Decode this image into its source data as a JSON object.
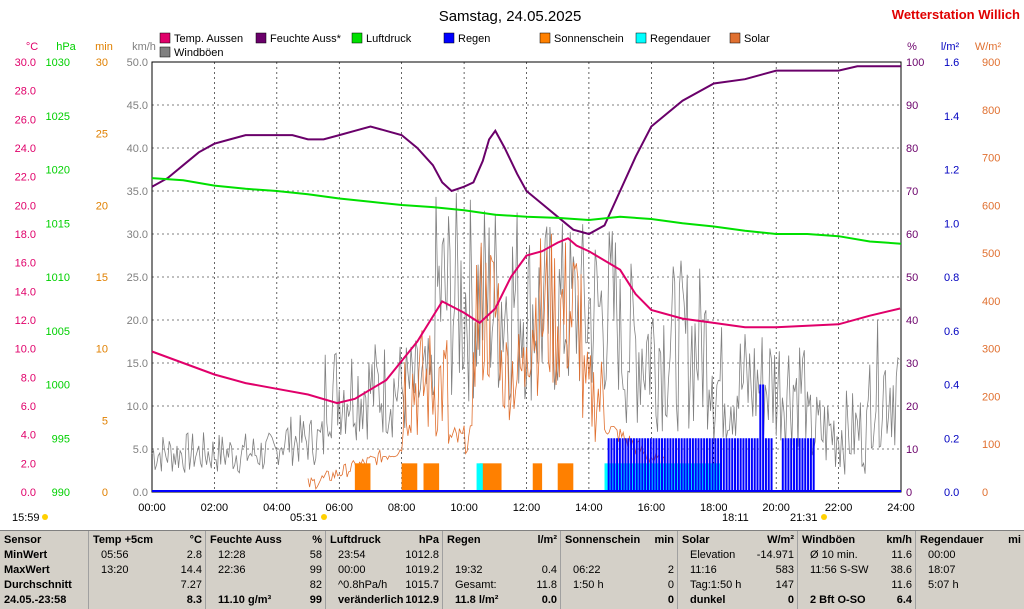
{
  "title": "Samstag, 24.05.2025",
  "station": "Wetterstation Willich",
  "colors": {
    "temp": "#e0006a",
    "hum": "#6a006a",
    "press": "#00e000",
    "rain": "#0000ff",
    "sun": "#ff8000",
    "raindur": "#00ffff",
    "solar": "#e07030",
    "wind": "#808080",
    "brand": "#e00000"
  },
  "legend": [
    {
      "label": "Temp. Aussen",
      "color": "#e0006a"
    },
    {
      "label": "Feuchte Auss*",
      "color": "#6a006a"
    },
    {
      "label": "Luftdruck",
      "color": "#00e000"
    },
    {
      "label": "Regen",
      "color": "#0000ff"
    },
    {
      "label": "Sonnenschein",
      "color": "#ff8000"
    },
    {
      "label": "Regendauer",
      "color": "#00ffff"
    },
    {
      "label": "Solar",
      "color": "#e07030"
    },
    {
      "label": "Windböen",
      "color": "#808080"
    }
  ],
  "axis_units": {
    "temp": "°C",
    "press": "hPa",
    "min": "min",
    "wind": "km/h",
    "hum": "%",
    "rain": "l/m²",
    "solar": "W/m²"
  },
  "chart_data": {
    "type": "line",
    "x_ticks": [
      "00:00",
      "02:00",
      "04:00",
      "06:00",
      "08:00",
      "10:00",
      "12:00",
      "14:00",
      "16:00",
      "18:00",
      "20:00",
      "22:00",
      "24:00"
    ],
    "xlim_hours": [
      0,
      24
    ],
    "grid": true,
    "axes": {
      "temp": {
        "unit": "°C",
        "range": [
          0,
          30
        ],
        "ticks": [
          "30.0",
          "28.0",
          "26.0",
          "24.0",
          "22.0",
          "20.0",
          "18.0",
          "16.0",
          "14.0",
          "12.0",
          "10.0",
          "8.0",
          "6.0",
          "4.0",
          "2.0",
          "0.0"
        ]
      },
      "press": {
        "unit": "hPa",
        "range": [
          990,
          1030
        ],
        "ticks": [
          "1030",
          "1025",
          "1020",
          "1015",
          "1010",
          "1005",
          "1000",
          "995",
          "990"
        ]
      },
      "min": {
        "unit": "min",
        "range": [
          0,
          30
        ],
        "ticks": [
          "30",
          "25",
          "20",
          "15",
          "10",
          "5",
          "0"
        ]
      },
      "wind": {
        "unit": "km/h",
        "range": [
          0,
          50
        ],
        "ticks": [
          "50.0",
          "45.0",
          "40.0",
          "35.0",
          "30.0",
          "25.0",
          "20.0",
          "15.0",
          "10.0",
          "5.0",
          "0.0"
        ]
      },
      "hum": {
        "unit": "%",
        "range": [
          0,
          100
        ],
        "ticks": [
          "100",
          "90",
          "80",
          "70",
          "60",
          "50",
          "40",
          "30",
          "20",
          "10",
          "0"
        ]
      },
      "rain": {
        "unit": "l/m²",
        "range": [
          0,
          1.6
        ],
        "ticks": [
          "1.6",
          "1.4",
          "1.2",
          "1.0",
          "0.8",
          "0.6",
          "0.4",
          "0.2",
          "0.0"
        ]
      },
      "solar": {
        "unit": "W/m²",
        "range": [
          0,
          900
        ],
        "ticks": [
          "900",
          "800",
          "700",
          "600",
          "500",
          "400",
          "300",
          "200",
          "100",
          "0"
        ]
      }
    },
    "series": [
      {
        "name": "Temp. Aussen",
        "axis": "temp",
        "x": [
          0,
          1,
          2,
          3,
          4,
          5,
          5.93,
          6.5,
          7.5,
          8.5,
          9.3,
          10,
          10.5,
          11,
          11.5,
          12,
          12.5,
          13,
          13.33,
          13.6,
          14,
          15,
          15.5,
          16,
          17,
          18,
          19,
          20,
          21,
          22,
          23,
          23.97
        ],
        "y": [
          9.8,
          9,
          8.2,
          7.6,
          7.2,
          6.8,
          6.2,
          6.5,
          7.8,
          10.5,
          13.3,
          12.5,
          11.8,
          12.8,
          15,
          16.5,
          16.8,
          17.4,
          17.7,
          17.2,
          16.8,
          15.5,
          13.8,
          12.7,
          12.1,
          11.8,
          11.5,
          11.5,
          11.6,
          11.7,
          12.3,
          12.8
        ]
      },
      {
        "name": "Feuchte Auss*",
        "axis": "hum",
        "x": [
          0,
          0.5,
          1,
          1.5,
          2,
          2.5,
          3,
          3.5,
          4,
          4.5,
          5,
          5.5,
          6,
          6.5,
          7,
          7.5,
          8,
          8.5,
          9,
          9.3,
          9.6,
          10,
          10.3,
          10.6,
          10.8,
          11,
          11.3,
          11.7,
          12,
          12.5,
          13,
          13.5,
          14,
          14.5,
          15,
          15.5,
          16,
          17,
          18,
          19,
          20,
          21,
          22,
          22.6,
          23,
          23.7,
          24
        ],
        "y": [
          71,
          73,
          76,
          79,
          81,
          82,
          83,
          83,
          83,
          83,
          82,
          82,
          83,
          84,
          85,
          84,
          83,
          80,
          76,
          72,
          70,
          71,
          72,
          77,
          82,
          84,
          80,
          74,
          70,
          67,
          64,
          61,
          60,
          62,
          70,
          78,
          85,
          91,
          95,
          96,
          98,
          98,
          98,
          99,
          99,
          99,
          99
        ]
      },
      {
        "name": "Luftdruck",
        "axis": "press",
        "x": [
          0,
          1,
          2,
          3,
          4,
          5,
          6,
          7,
          8,
          9,
          10,
          11,
          12,
          13,
          14,
          15,
          16,
          17,
          18,
          19,
          20,
          21,
          22,
          23,
          24
        ],
        "y": [
          1019.2,
          1019.0,
          1018.5,
          1018.2,
          1018.0,
          1017.7,
          1017.3,
          1017.0,
          1016.7,
          1016.5,
          1016.2,
          1015.8,
          1015.6,
          1015.5,
          1015.3,
          1015.6,
          1015.4,
          1015.0,
          1014.7,
          1014.3,
          1014.0,
          1014.0,
          1013.8,
          1013.3,
          1013.1
        ]
      },
      {
        "name": "Sonnenschein",
        "axis": "min",
        "bars": [
          [
            6.5,
            7.0,
            2
          ],
          [
            8.0,
            8.5,
            2
          ],
          [
            8.7,
            9.2,
            2
          ],
          [
            10.5,
            11.2,
            2
          ],
          [
            12.2,
            12.5,
            2
          ],
          [
            13.0,
            13.5,
            2
          ]
        ]
      },
      {
        "name": "Regendauer",
        "axis": "min",
        "bars": [
          [
            10.4,
            10.6,
            2
          ],
          [
            14.5,
            18.2,
            2
          ]
        ]
      },
      {
        "name": "Regen",
        "axis": "rain",
        "values_note": "mostly 0.2 l/m² per interval with a 0.4 peak at 19:32"
      }
    ]
  },
  "markers": {
    "sunrise": "05:31",
    "sunset": "21:31",
    "solar_noon_left": "12",
    "time_left": "15:59",
    "time_right_text": "18:11"
  },
  "table": {
    "rows_labels": [
      "Sensor",
      "MinWert",
      "MaxWert",
      "Durchschnitt",
      "24.05.-23:58"
    ],
    "columns": [
      {
        "title": "Temp +5cm",
        "unit": "°C",
        "rows": [
          [
            "05:56",
            "2.8"
          ],
          [
            "13:20",
            "14.4"
          ],
          [
            "",
            "7.27"
          ],
          [
            "",
            "8.3"
          ]
        ]
      },
      {
        "title": "Feuchte Auss",
        "unit": "%",
        "rows": [
          [
            "12:28",
            "58"
          ],
          [
            "22:36",
            "99"
          ],
          [
            "",
            "82"
          ],
          [
            "11.10 g/m³",
            "99"
          ]
        ]
      },
      {
        "title": "Luftdruck",
        "unit": "hPa",
        "rows": [
          [
            "23:54",
            "1012.8"
          ],
          [
            "00:00",
            "1019.2"
          ],
          [
            "^0.8hPa/h",
            "1015.7"
          ],
          [
            "veränderlich",
            "1012.9"
          ]
        ]
      },
      {
        "title": "Regen",
        "unit": "l/m²",
        "rows": [
          [
            "",
            ""
          ],
          [
            "19:32",
            "0.4"
          ],
          [
            "Gesamt:",
            "11.8"
          ],
          [
            "11.8 l/m²",
            "0.0"
          ]
        ]
      },
      {
        "title": "Sonnenschein",
        "unit": "min",
        "rows": [
          [
            "",
            ""
          ],
          [
            "06:22",
            "2"
          ],
          [
            "1:50 h",
            "0"
          ],
          [
            "",
            "0"
          ]
        ]
      },
      {
        "title": "Solar",
        "unit": "W/m²",
        "rows": [
          [
            "Elevation",
            "-14.971"
          ],
          [
            "11:16",
            "583"
          ],
          [
            "Tag:1:50 h",
            "147"
          ],
          [
            "dunkel",
            "0"
          ]
        ]
      },
      {
        "title": "Windböen",
        "unit": "km/h",
        "rows": [
          [
            "Ø 10 min.",
            "11.6"
          ],
          [
            "11:56   S-SW",
            "38.6"
          ],
          [
            "",
            "11.6"
          ],
          [
            "2 Bft O-SO",
            "6.4"
          ]
        ]
      },
      {
        "title": "Regendauer",
        "unit": "mi",
        "rows": [
          [
            "00:00",
            ""
          ],
          [
            "18:07",
            ""
          ],
          [
            "5:07 h",
            ""
          ],
          [
            "",
            ""
          ]
        ]
      }
    ]
  }
}
